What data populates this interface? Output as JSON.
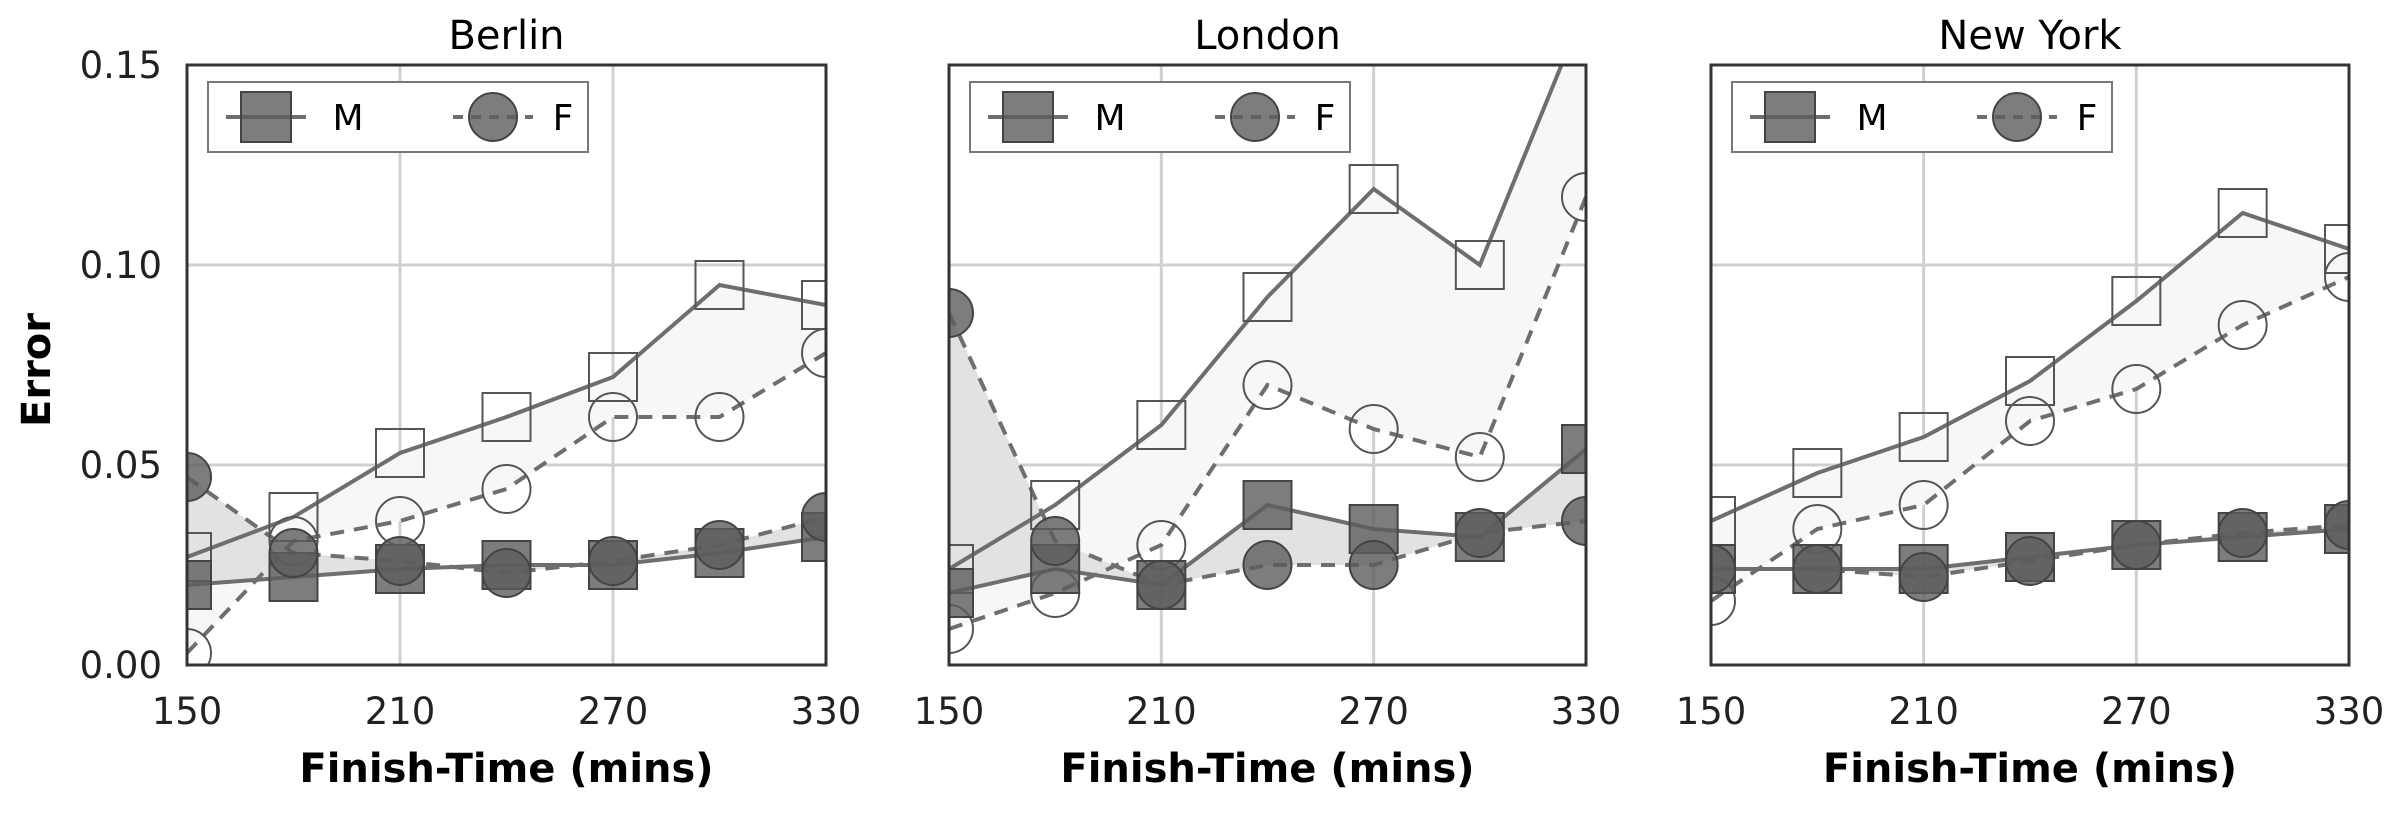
{
  "chart_data": {
    "type": "line",
    "ylabel": "Error",
    "ylim": [
      0,
      0.15
    ],
    "yticks": [
      0.0,
      0.05,
      0.1,
      0.15
    ],
    "ytick_labels": [
      "0.00",
      "0.05",
      "0.10",
      "0.15"
    ],
    "xlim": [
      150,
      330
    ],
    "xticks": [
      150,
      210,
      270,
      330
    ],
    "xtick_labels": [
      "150",
      "210",
      "270",
      "330"
    ],
    "xlabel": "Finish-Time (mins)",
    "grid": true,
    "legend": {
      "placement": "top-left",
      "entries": [
        {
          "label": "M",
          "marker": "square",
          "line": "solid"
        },
        {
          "label": "F",
          "marker": "circle",
          "line": "dashed"
        }
      ]
    },
    "colors": {
      "line": "#6e6e6e",
      "filled_marker": "#5c5c5c",
      "open_marker_edge": "#555555",
      "band_upper": "#f7f7f7",
      "band_lower": "#e2e2e2",
      "grid": "#d0d0d0",
      "frame": "#333333"
    },
    "x": [
      150,
      180,
      210,
      240,
      270,
      300,
      330
    ],
    "panels": [
      {
        "title": "Berlin",
        "series": [
          {
            "name": "M",
            "group": "upper",
            "marker": "square",
            "values": [
              0.027,
              0.037,
              0.053,
              0.062,
              0.072,
              0.095,
              0.09
            ]
          },
          {
            "name": "F",
            "group": "upper",
            "marker": "circle",
            "values": [
              0.003,
              0.031,
              0.036,
              0.044,
              0.062,
              0.062,
              0.078
            ]
          },
          {
            "name": "M",
            "group": "lower",
            "marker": "square",
            "values": [
              0.02,
              0.022,
              0.024,
              0.025,
              0.025,
              0.028,
              0.032
            ]
          },
          {
            "name": "F",
            "group": "lower",
            "marker": "circle",
            "values": [
              0.047,
              0.028,
              0.026,
              0.023,
              0.026,
              0.03,
              0.037
            ]
          }
        ]
      },
      {
        "title": "London",
        "series": [
          {
            "name": "M",
            "group": "upper",
            "marker": "square",
            "values": [
              0.024,
              0.04,
              0.06,
              0.092,
              0.119,
              0.1,
              0.165
            ]
          },
          {
            "name": "F",
            "group": "upper",
            "marker": "circle",
            "values": [
              0.009,
              0.018,
              0.03,
              0.07,
              0.059,
              0.052,
              0.117
            ]
          },
          {
            "name": "M",
            "group": "lower",
            "marker": "square",
            "values": [
              0.018,
              0.024,
              0.02,
              0.04,
              0.034,
              0.032,
              0.054
            ]
          },
          {
            "name": "F",
            "group": "lower",
            "marker": "circle",
            "values": [
              0.088,
              0.031,
              0.02,
              0.025,
              0.025,
              0.033,
              0.036
            ]
          }
        ]
      },
      {
        "title": "New York",
        "series": [
          {
            "name": "M",
            "group": "upper",
            "marker": "square",
            "values": [
              0.036,
              0.048,
              0.057,
              0.071,
              0.091,
              0.113,
              0.104
            ]
          },
          {
            "name": "F",
            "group": "upper",
            "marker": "circle",
            "values": [
              0.016,
              0.034,
              0.04,
              0.061,
              0.069,
              0.085,
              0.097
            ]
          },
          {
            "name": "M",
            "group": "lower",
            "marker": "square",
            "values": [
              0.024,
              0.024,
              0.024,
              0.027,
              0.03,
              0.032,
              0.034
            ]
          },
          {
            "name": "F",
            "group": "lower",
            "marker": "circle",
            "values": [
              0.024,
              0.024,
              0.022,
              0.026,
              0.03,
              0.033,
              0.035
            ]
          }
        ]
      }
    ]
  }
}
